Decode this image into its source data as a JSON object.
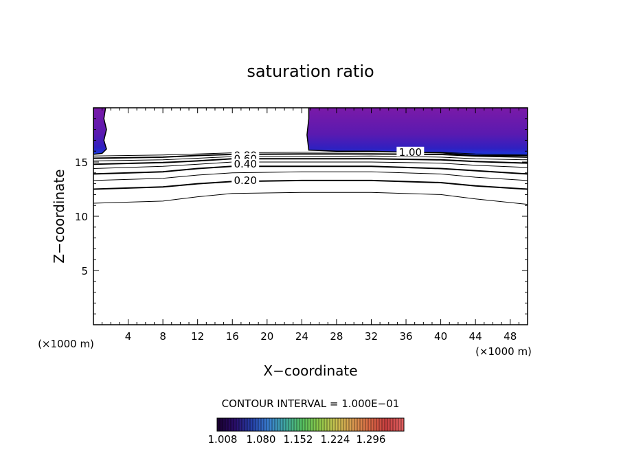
{
  "chart_data": {
    "type": "contour",
    "title": "saturation ratio",
    "xlabel": "X−coordinate",
    "ylabel": "Z−coordinate",
    "x_unit": "(×1000 m)",
    "z_unit": "(×1000 m)",
    "xlim": [
      0,
      50
    ],
    "ylim": [
      0,
      20
    ],
    "x_ticks": [
      4,
      8,
      12,
      16,
      20,
      24,
      28,
      32,
      36,
      40,
      44,
      48
    ],
    "x_tick_labels": [
      "4",
      "8",
      "12",
      "16",
      "20",
      "24",
      "28",
      "32",
      "36",
      "40",
      "44",
      "48"
    ],
    "y_ticks": [
      5,
      10,
      15
    ],
    "y_tick_labels": [
      "5",
      "10",
      "15"
    ],
    "contour_interval_text": "CONTOUR INTERVAL = 1.000E−01",
    "contour_labels": [
      {
        "text": "0.80",
        "x": 17.5,
        "z": 15.6
      },
      {
        "text": "0.60",
        "x": 17.5,
        "z": 15.3
      },
      {
        "text": "0.40",
        "x": 17.5,
        "z": 14.8
      },
      {
        "text": "0.20",
        "x": 17.5,
        "z": 13.3
      },
      {
        "text": "1.00",
        "x": 36.5,
        "z": 15.9
      }
    ],
    "contour_lines": [
      {
        "level": 0.1,
        "pts": [
          [
            0,
            11.2
          ],
          [
            8,
            11.4
          ],
          [
            12,
            11.8
          ],
          [
            16,
            12.1
          ],
          [
            24,
            12.2
          ],
          [
            32,
            12.2
          ],
          [
            40,
            12.0
          ],
          [
            44,
            11.6
          ],
          [
            50,
            11.1
          ]
        ]
      },
      {
        "level": 0.2,
        "pts": [
          [
            0,
            12.5
          ],
          [
            8,
            12.7
          ],
          [
            12,
            13.0
          ],
          [
            16,
            13.2
          ],
          [
            24,
            13.3
          ],
          [
            32,
            13.3
          ],
          [
            40,
            13.1
          ],
          [
            44,
            12.8
          ],
          [
            50,
            12.5
          ]
        ]
      },
      {
        "level": 0.3,
        "pts": [
          [
            0,
            13.3
          ],
          [
            8,
            13.5
          ],
          [
            12,
            13.8
          ],
          [
            16,
            14.0
          ],
          [
            24,
            14.1
          ],
          [
            32,
            14.1
          ],
          [
            40,
            13.9
          ],
          [
            44,
            13.6
          ],
          [
            50,
            13.3
          ]
        ]
      },
      {
        "level": 0.4,
        "pts": [
          [
            0,
            13.9
          ],
          [
            8,
            14.1
          ],
          [
            12,
            14.4
          ],
          [
            16,
            14.6
          ],
          [
            24,
            14.6
          ],
          [
            32,
            14.6
          ],
          [
            40,
            14.4
          ],
          [
            44,
            14.2
          ],
          [
            50,
            13.9
          ]
        ]
      },
      {
        "level": 0.5,
        "pts": [
          [
            0,
            14.4
          ],
          [
            8,
            14.6
          ],
          [
            12,
            14.8
          ],
          [
            16,
            15.0
          ],
          [
            24,
            15.0
          ],
          [
            32,
            15.0
          ],
          [
            40,
            14.9
          ],
          [
            44,
            14.7
          ],
          [
            50,
            14.5
          ]
        ]
      },
      {
        "level": 0.6,
        "pts": [
          [
            0,
            14.8
          ],
          [
            8,
            14.95
          ],
          [
            12,
            15.1
          ],
          [
            16,
            15.3
          ],
          [
            24,
            15.3
          ],
          [
            32,
            15.3
          ],
          [
            40,
            15.2
          ],
          [
            44,
            15.05
          ],
          [
            50,
            14.9
          ]
        ]
      },
      {
        "level": 0.7,
        "pts": [
          [
            0,
            15.1
          ],
          [
            8,
            15.2
          ],
          [
            12,
            15.35
          ],
          [
            16,
            15.5
          ],
          [
            24,
            15.5
          ],
          [
            32,
            15.55
          ],
          [
            40,
            15.45
          ],
          [
            44,
            15.3
          ],
          [
            50,
            15.2
          ]
        ]
      },
      {
        "level": 0.8,
        "pts": [
          [
            0,
            15.35
          ],
          [
            8,
            15.45
          ],
          [
            12,
            15.6
          ],
          [
            16,
            15.7
          ],
          [
            24,
            15.75
          ],
          [
            32,
            15.75
          ],
          [
            40,
            15.7
          ],
          [
            44,
            15.55
          ],
          [
            50,
            15.45
          ]
        ]
      },
      {
        "level": 0.9,
        "pts": [
          [
            0,
            15.55
          ],
          [
            8,
            15.65
          ],
          [
            12,
            15.75
          ],
          [
            16,
            15.85
          ],
          [
            24,
            15.9
          ],
          [
            32,
            15.95
          ],
          [
            40,
            15.9
          ],
          [
            44,
            15.75
          ],
          [
            50,
            15.65
          ]
        ]
      }
    ],
    "shaded_regions": [
      {
        "pts": [
          [
            0,
            20
          ],
          [
            1.4,
            20
          ],
          [
            1.2,
            19.0
          ],
          [
            1.5,
            18.0
          ],
          [
            1.2,
            17.0
          ],
          [
            1.5,
            16.2
          ],
          [
            1.0,
            15.8
          ],
          [
            0,
            15.7
          ]
        ]
      },
      {
        "pts": [
          [
            24.8,
            20
          ],
          [
            50,
            20
          ],
          [
            50,
            15.6
          ],
          [
            44,
            15.6
          ],
          [
            40,
            15.85
          ],
          [
            36,
            15.9
          ],
          [
            32,
            16.0
          ],
          [
            28,
            16.0
          ],
          [
            24.8,
            16.1
          ],
          [
            24.6,
            17.5
          ],
          [
            24.8,
            19.0
          ]
        ]
      }
    ],
    "colorbar": {
      "colors": [
        "#1a0033",
        "#2a0e6b",
        "#2540a8",
        "#3a7fd0",
        "#40a8a0",
        "#55c060",
        "#8cc84a",
        "#c8c050",
        "#d89a50",
        "#d86a45",
        "#c84040",
        "#e06060"
      ],
      "tick_labels": [
        "1.008",
        "1.080",
        "1.152",
        "1.224",
        "1.296"
      ]
    }
  }
}
